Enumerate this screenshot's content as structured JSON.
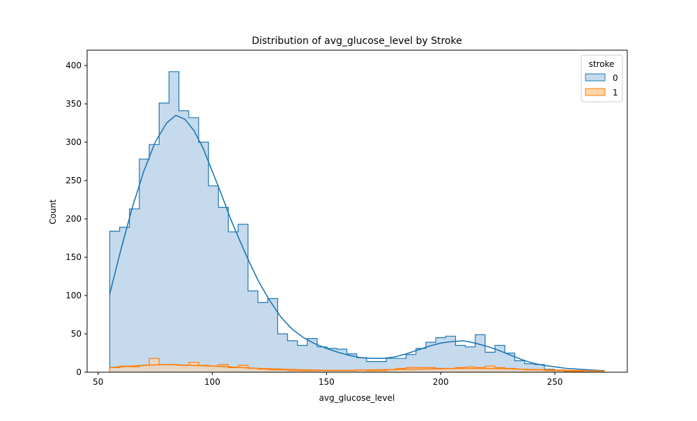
{
  "chart_data": {
    "type": "histogram",
    "title": "Distribution of avg_glucose_level by Stroke",
    "xlabel": "avg_glucose_level",
    "ylabel": "Count",
    "xlim": [
      45.2,
      281.7
    ],
    "ylim": [
      0,
      420
    ],
    "x_ticks": [
      50,
      100,
      150,
      200,
      250
    ],
    "y_ticks": [
      0,
      50,
      100,
      150,
      200,
      250,
      300,
      350,
      400
    ],
    "bin_start": 55.1,
    "bin_width": 4.325,
    "legend": {
      "title": "stroke",
      "placement": "top-right",
      "entries": [
        "0",
        "1"
      ]
    },
    "series": [
      {
        "name": "0",
        "color": "#1f77b4",
        "fill": "#c5daec",
        "counts": [
          184,
          189,
          213,
          278,
          297,
          351,
          392,
          341,
          332,
          300,
          243,
          215,
          183,
          193,
          106,
          91,
          96,
          50,
          41,
          35,
          44,
          33,
          31,
          30,
          24,
          19,
          14,
          14,
          18,
          18,
          23,
          31,
          39,
          45,
          47,
          35,
          33,
          49,
          26,
          35,
          25,
          15,
          11,
          10,
          4,
          3,
          2,
          2,
          2,
          2
        ],
        "kde": [
          [
            55.1,
            102
          ],
          [
            60,
            160
          ],
          [
            65,
            215
          ],
          [
            70,
            262
          ],
          [
            75,
            300
          ],
          [
            80,
            325
          ],
          [
            84,
            335
          ],
          [
            88,
            330
          ],
          [
            92,
            315
          ],
          [
            96,
            292
          ],
          [
            100,
            262
          ],
          [
            104,
            232
          ],
          [
            108,
            200
          ],
          [
            112,
            172
          ],
          [
            116,
            145
          ],
          [
            120,
            120
          ],
          [
            125,
            94
          ],
          [
            130,
            72
          ],
          [
            135,
            56
          ],
          [
            140,
            45
          ],
          [
            145,
            37
          ],
          [
            150,
            31
          ],
          [
            155,
            26
          ],
          [
            160,
            22
          ],
          [
            165,
            19
          ],
          [
            170,
            18
          ],
          [
            175,
            18
          ],
          [
            180,
            20
          ],
          [
            185,
            24
          ],
          [
            190,
            29
          ],
          [
            195,
            34
          ],
          [
            200,
            38
          ],
          [
            205,
            40
          ],
          [
            210,
            41
          ],
          [
            215,
            38
          ],
          [
            220,
            34
          ],
          [
            225,
            29
          ],
          [
            230,
            23
          ],
          [
            235,
            17
          ],
          [
            240,
            12
          ],
          [
            245,
            9
          ],
          [
            250,
            7
          ],
          [
            255,
            5
          ],
          [
            260,
            4
          ],
          [
            265,
            3
          ],
          [
            271.6,
            2
          ]
        ]
      },
      {
        "name": "1",
        "color": "#ff7f0e",
        "fill": "#ffd6a8",
        "counts": [
          6,
          8,
          7,
          9,
          18,
          10,
          10,
          9,
          13,
          9,
          8,
          10,
          6,
          9,
          5,
          4,
          3,
          3,
          2,
          2,
          2,
          2,
          2,
          2,
          2,
          3,
          2,
          2,
          3,
          5,
          6,
          6,
          6,
          5,
          5,
          6,
          7,
          6,
          8,
          6,
          5,
          4,
          3,
          3,
          2,
          2,
          1,
          1,
          0,
          0
        ],
        "kde": [
          [
            55.1,
            6
          ],
          [
            60,
            7
          ],
          [
            70,
            9
          ],
          [
            80,
            10
          ],
          [
            90,
            9
          ],
          [
            100,
            8
          ],
          [
            110,
            6.5
          ],
          [
            120,
            5
          ],
          [
            130,
            4
          ],
          [
            140,
            3
          ],
          [
            150,
            2.5
          ],
          [
            160,
            2.5
          ],
          [
            170,
            3
          ],
          [
            180,
            3.5
          ],
          [
            190,
            4
          ],
          [
            200,
            4.5
          ],
          [
            210,
            5
          ],
          [
            220,
            5
          ],
          [
            230,
            4.5
          ],
          [
            240,
            3.5
          ],
          [
            250,
            3
          ],
          [
            260,
            2
          ],
          [
            271.6,
            1.5
          ]
        ]
      }
    ]
  }
}
